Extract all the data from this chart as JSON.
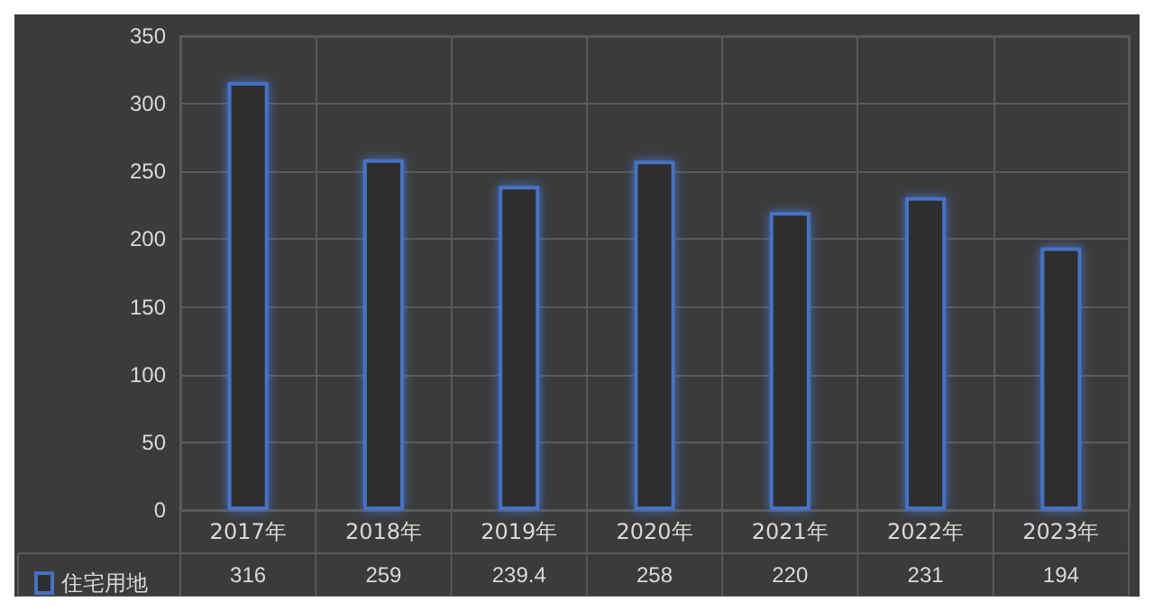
{
  "chart_data": {
    "type": "bar",
    "categories": [
      "2017年",
      "2018年",
      "2019年",
      "2020年",
      "2021年",
      "2022年",
      "2023年"
    ],
    "series": [
      {
        "name": "住宅用地",
        "color": "#4472c4",
        "values": [
          316,
          259,
          239.4,
          258,
          220,
          231,
          194
        ]
      }
    ],
    "ylim": [
      0,
      350
    ],
    "yticks": [
      0,
      50,
      100,
      150,
      200,
      250,
      300,
      350
    ],
    "grid": true,
    "legend": "bottom left",
    "data_labels": true
  }
}
